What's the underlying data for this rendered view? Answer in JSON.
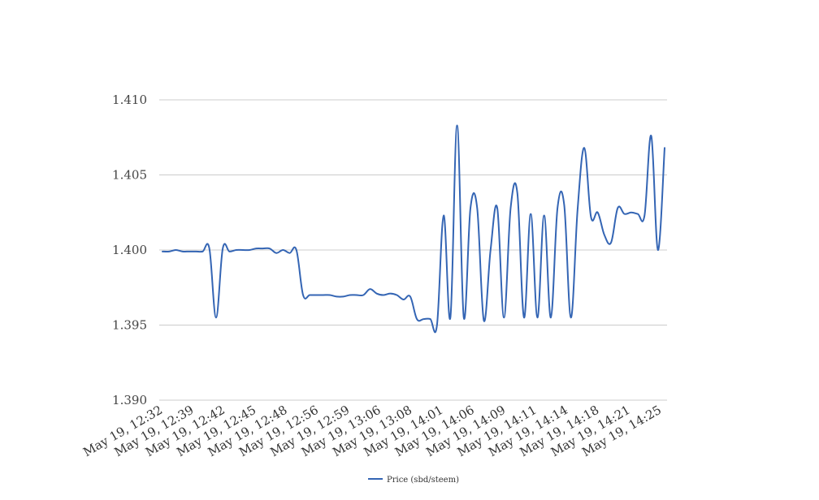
{
  "chart_data": {
    "type": "line",
    "title": "",
    "xlabel": "",
    "ylabel": "",
    "ylim": [
      1.39,
      1.41
    ],
    "yticks": [
      "1.390",
      "1.395",
      "1.400",
      "1.405",
      "1.410"
    ],
    "xtick_labels": [
      "May 19, 12:32",
      "May 19, 12:39",
      "May 19, 12:42",
      "May 19, 12:45",
      "May 19, 12:48",
      "May 19, 12:56",
      "May 19, 12:59",
      "May 19, 13:06",
      "May 19, 13:08",
      "May 19, 14:01",
      "May 19, 14:06",
      "May 19, 14:09",
      "May 19, 14:11",
      "May 19, 14:14",
      "May 19, 14:18",
      "May 19, 14:21",
      "May 19, 14:25"
    ],
    "grid": true,
    "legend_position": "bottom-center",
    "series": [
      {
        "name": "Price (sbd/steem)",
        "color": "#3465b4",
        "values": [
          1.3999,
          1.3999,
          1.4,
          1.3999,
          1.3999,
          1.3999,
          1.3999,
          1.4001,
          1.3955,
          1.4001,
          1.3999,
          1.4,
          1.4,
          1.4,
          1.4001,
          1.4001,
          1.4001,
          1.3998,
          1.4,
          1.3998,
          1.4,
          1.397,
          1.397,
          1.397,
          1.397,
          1.397,
          1.3969,
          1.3969,
          1.397,
          1.397,
          1.397,
          1.3974,
          1.3971,
          1.397,
          1.3971,
          1.397,
          1.3967,
          1.3969,
          1.3954,
          1.3954,
          1.3954,
          1.395,
          1.4023,
          1.3955,
          1.4083,
          1.3955,
          1.4028,
          1.4028,
          1.3953,
          1.4,
          1.4028,
          1.3955,
          1.4028,
          1.4038,
          1.3955,
          1.4024,
          1.3955,
          1.4023,
          1.3955,
          1.4028,
          1.403,
          1.3955,
          1.4027,
          1.4068,
          1.4022,
          1.4025,
          1.401,
          1.4005,
          1.4028,
          1.4024,
          1.4025,
          1.4024,
          1.4023,
          1.4076,
          1.4,
          1.4068
        ]
      }
    ]
  }
}
